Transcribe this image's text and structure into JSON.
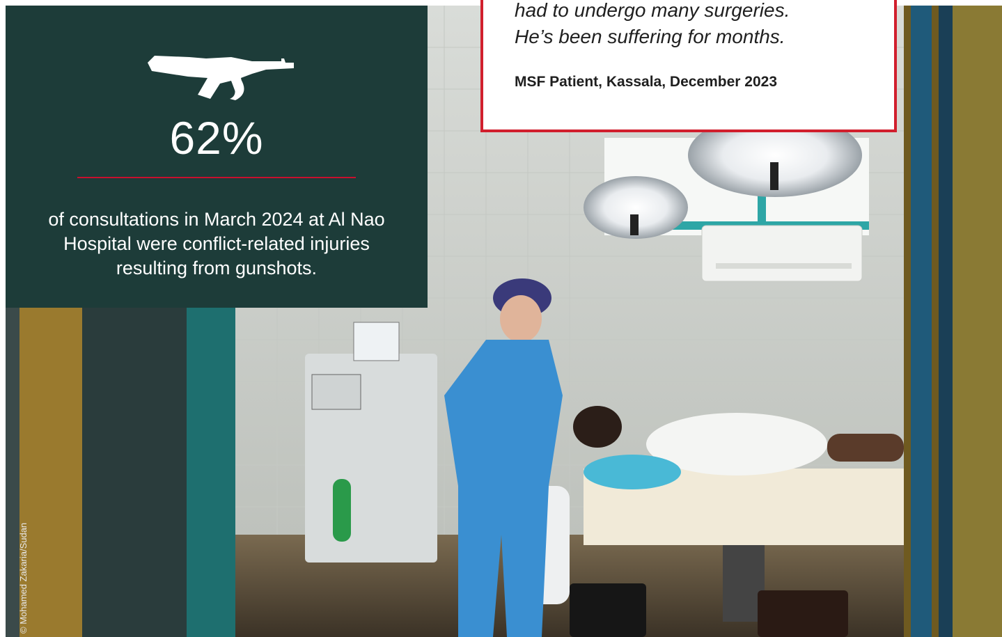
{
  "statistic": {
    "icon": "rifle-icon",
    "value": "62%",
    "description": "of consultations in March 2024 at Al Nao Hospital were conflict-related injuries resulting from gunshots."
  },
  "quote": {
    "lines": [
      "had to undergo many surgeries.",
      "He’s been suffering for months."
    ],
    "attribution": "MSF Patient, Kassala, December 2023"
  },
  "photo_credit": "© Mohamed Zakaria/Sudan",
  "colors": {
    "panel": "#1d3c39",
    "accent_red": "#c8102e",
    "quote_border": "#d11f2d"
  }
}
